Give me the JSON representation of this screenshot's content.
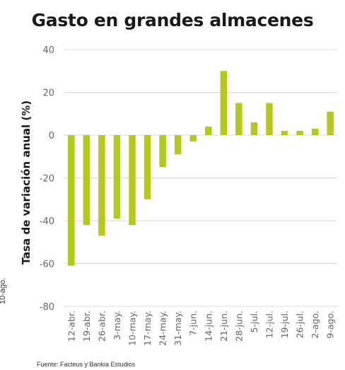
{
  "edge_fragment": "10-ago.",
  "source_note": "Fuente: Facteus y Bankia Estudios",
  "colors": {
    "bar": "#b5c91d",
    "grid": "#d9d9d9",
    "axis": "#9a9a9a",
    "tick_text": "#666666"
  },
  "chart_data": {
    "type": "bar",
    "title": "Gasto en grandes almacenes",
    "xlabel": "",
    "ylabel": "Tasa de variación anual (%)",
    "ylim": [
      -80,
      40
    ],
    "yticks": [
      40,
      20,
      0,
      -20,
      -40,
      -60,
      -80
    ],
    "grid": true,
    "categories": [
      "12-abr.",
      "19-abr.",
      "26-abr.",
      "3-may.",
      "10-may.",
      "17-may.",
      "24-may.",
      "31-may.",
      "7-jun.",
      "14-jun.",
      "21-jun.",
      "28-jun.",
      "5-jul.",
      "12-jul.",
      "19-jul.",
      "26-jul.",
      "2-ago.",
      "9-ago."
    ],
    "values": [
      -61,
      -42,
      -47,
      -39,
      -42,
      -30,
      -15,
      -9,
      -3,
      4,
      30,
      15,
      6,
      15,
      2,
      2,
      3,
      11
    ]
  }
}
